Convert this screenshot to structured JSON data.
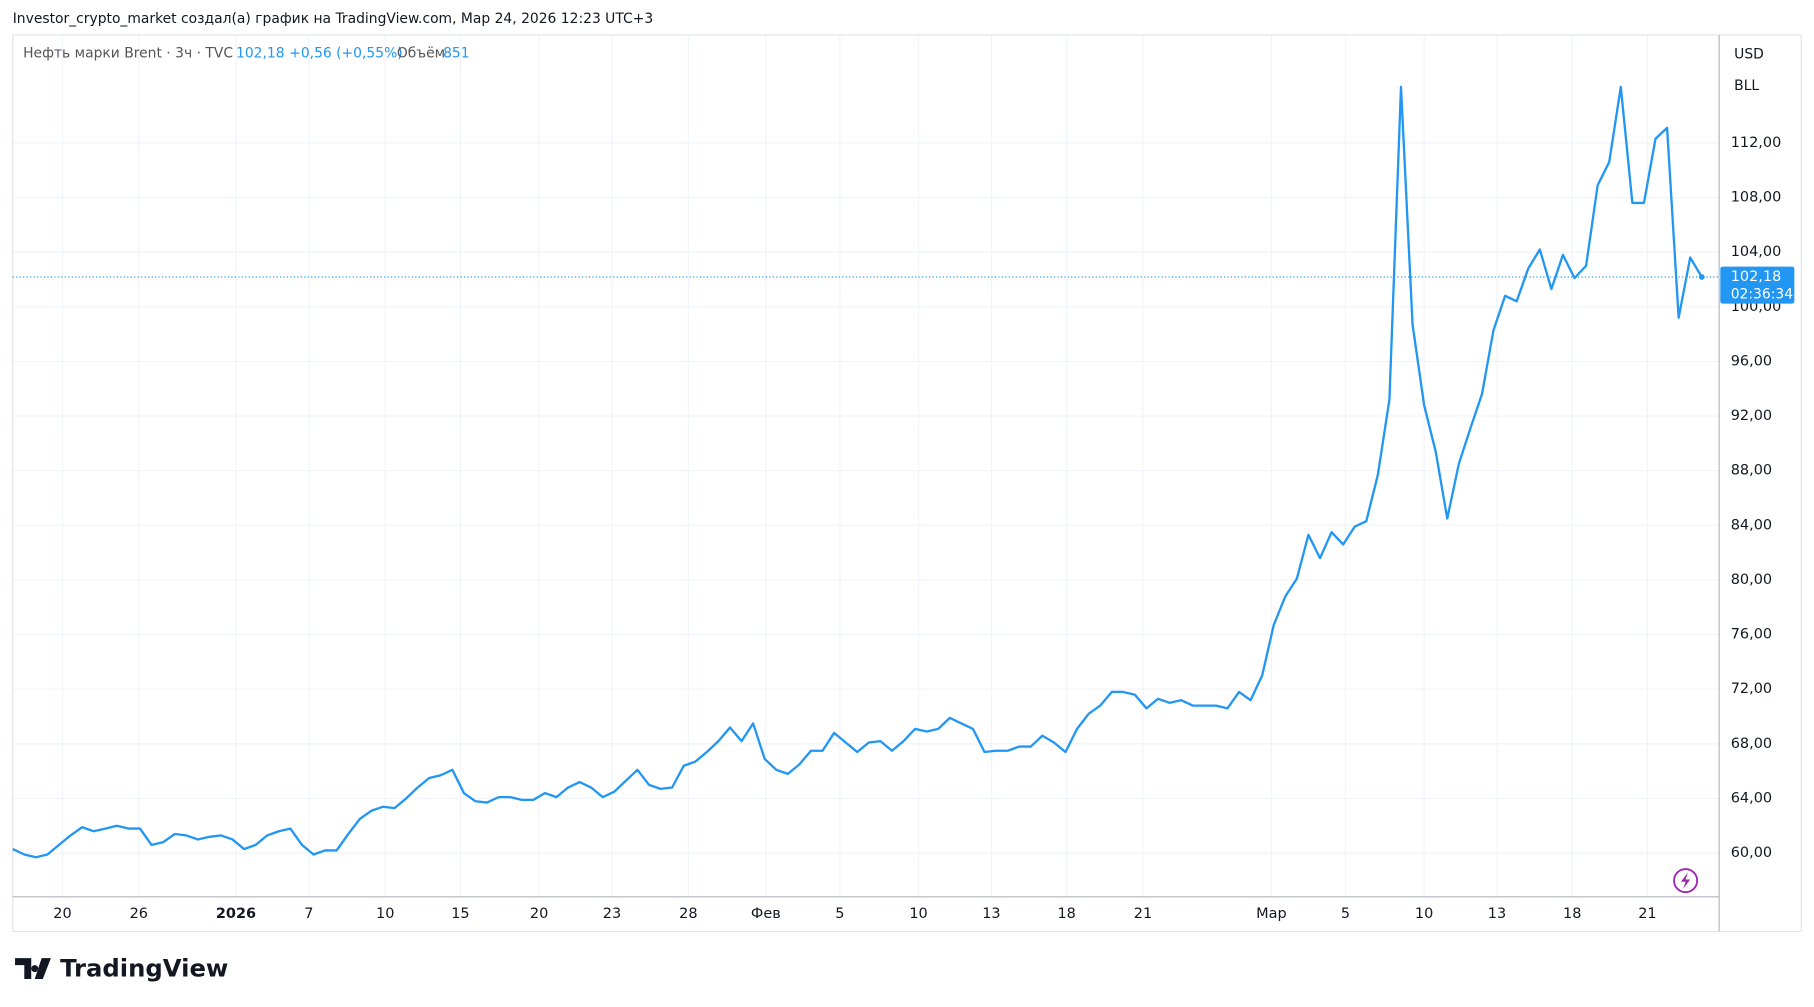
{
  "header": "Investor_crypto_market создал(а) график на TradingView.com, Мар 24, 2026 12:23 UTC+3",
  "legend": {
    "symbol": "Нефть марки Brent · 3ч · TVC",
    "price": "102,18",
    "change": "+0,56 (+0,55%)",
    "volume_label": "Объём",
    "volume": 851
  },
  "currency": [
    "USD",
    "BLL"
  ],
  "price_tag": {
    "price": "102,18",
    "countdown": "02:36:34"
  },
  "logo": "TradingView",
  "chart_data": {
    "type": "line",
    "color": "#2196f3",
    "grid": true,
    "values": [
      60.3,
      59.9,
      59.7,
      59.9,
      60.6,
      61.3,
      61.9,
      61.6,
      61.8,
      62.0,
      61.8,
      61.8,
      60.6,
      60.8,
      61.4,
      61.3,
      61.0,
      61.2,
      61.3,
      61.0,
      60.3,
      60.6,
      61.3,
      61.6,
      61.8,
      60.6,
      59.9,
      60.2,
      60.2,
      61.4,
      62.5,
      63.1,
      63.4,
      63.3,
      64.0,
      64.8,
      65.5,
      65.7,
      66.1,
      64.4,
      63.8,
      63.7,
      64.1,
      64.1,
      63.9,
      63.9,
      64.4,
      64.1,
      64.8,
      65.2,
      64.8,
      64.1,
      64.5,
      65.3,
      66.1,
      65.0,
      64.7,
      64.8,
      66.4,
      66.7,
      67.4,
      68.2,
      69.2,
      68.2,
      69.5,
      66.9,
      66.1,
      65.8,
      66.5,
      67.5,
      67.5,
      68.8,
      68.1,
      67.4,
      68.1,
      68.2,
      67.5,
      68.2,
      69.1,
      68.9,
      69.1,
      69.9,
      69.5,
      69.1,
      67.4,
      67.5,
      67.5,
      67.8,
      67.8,
      68.6,
      68.1,
      67.4,
      69.1,
      70.2,
      70.8,
      71.8,
      71.8,
      71.6,
      70.6,
      71.3,
      71.0,
      71.2,
      70.8,
      70.8,
      70.8,
      70.6,
      71.8,
      71.2,
      73.0,
      76.7,
      78.8,
      80.1,
      83.3,
      81.6,
      83.5,
      82.6,
      83.9,
      84.3,
      87.7,
      93.2,
      116.1,
      98.7,
      92.8,
      89.4,
      84.5,
      88.5,
      91.1,
      93.6,
      98.3,
      100.8,
      100.4,
      102.8,
      104.2,
      101.3,
      103.8,
      102.1,
      103.0,
      108.9,
      110.6,
      116.1,
      107.6,
      107.6,
      112.3,
      113.1,
      99.2,
      103.6,
      102.18
    ],
    "xlim": [
      0,
      147.5
    ],
    "xticks": [
      {
        "value": 4.3,
        "label": "20"
      },
      {
        "value": 10.9,
        "label": "26"
      },
      {
        "value": 19.3,
        "label": "2026"
      },
      {
        "value": 25.6,
        "label": "7"
      },
      {
        "value": 32.2,
        "label": "10"
      },
      {
        "value": 38.7,
        "label": "15"
      },
      {
        "value": 45.5,
        "label": "20"
      },
      {
        "value": 51.8,
        "label": "23"
      },
      {
        "value": 58.4,
        "label": "28"
      },
      {
        "value": 65.1,
        "label": "Фев"
      },
      {
        "value": 71.5,
        "label": "5"
      },
      {
        "value": 78.3,
        "label": "10"
      },
      {
        "value": 84.6,
        "label": "13"
      },
      {
        "value": 91.1,
        "label": "18"
      },
      {
        "value": 97.7,
        "label": "21"
      },
      {
        "value": 108.8,
        "label": "Мар"
      },
      {
        "value": 115.2,
        "label": "5"
      },
      {
        "value": 122,
        "label": "10"
      },
      {
        "value": 128.3,
        "label": "13"
      },
      {
        "value": 134.8,
        "label": "18"
      },
      {
        "value": 141.3,
        "label": "21"
      }
    ],
    "ylim": [
      56.8,
      119.9
    ],
    "yticks": [
      {
        "value": 60,
        "label": "60,00"
      },
      {
        "value": 64,
        "label": "64,00"
      },
      {
        "value": 68,
        "label": "68,00"
      },
      {
        "value": 72,
        "label": "72,00"
      },
      {
        "value": 76,
        "label": "76,00"
      },
      {
        "value": 80,
        "label": "80,00"
      },
      {
        "value": 84,
        "label": "84,00"
      },
      {
        "value": 88,
        "label": "88,00"
      },
      {
        "value": 92,
        "label": "92,00"
      },
      {
        "value": 96,
        "label": "96,00"
      },
      {
        "value": 100,
        "label": "100,00"
      },
      {
        "value": 104,
        "label": "104,00"
      },
      {
        "value": 108,
        "label": "108,00"
      },
      {
        "value": 112,
        "label": "112,00"
      }
    ]
  }
}
